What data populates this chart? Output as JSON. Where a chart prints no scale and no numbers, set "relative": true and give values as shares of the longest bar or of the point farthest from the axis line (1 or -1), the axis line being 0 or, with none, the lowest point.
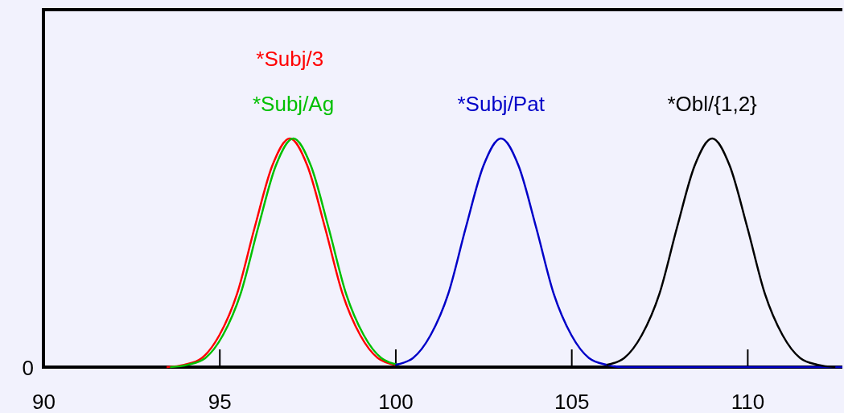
{
  "chart_data": {
    "type": "line",
    "relative": true,
    "xlim": [
      90,
      112.7
    ],
    "xticks": [
      90,
      95,
      100,
      105,
      110
    ],
    "marker": "none",
    "legend": false,
    "grid": false,
    "line_style": "solid",
    "annotations": [
      "0"
    ],
    "series": [
      {
        "name": "*Subj/3",
        "color": "#ff0000",
        "x": [
          93.5,
          94,
          94.5,
          95,
          95.5,
          96,
          96.5,
          97,
          97.5,
          98,
          98.5,
          99,
          99.5,
          100
        ],
        "values": [
          0,
          0.01,
          0.04,
          0.14,
          0.32,
          0.61,
          0.88,
          1,
          0.88,
          0.61,
          0.32,
          0.14,
          0.04,
          0.01
        ]
      },
      {
        "name": "*Subj/Ag",
        "color": "#00c000",
        "x": [
          93.6,
          94.1,
          94.6,
          95.1,
          95.6,
          96.1,
          96.6,
          97.1,
          97.6,
          98.1,
          98.6,
          99.1,
          99.6,
          100.1
        ],
        "values": [
          0,
          0.01,
          0.04,
          0.14,
          0.32,
          0.61,
          0.88,
          1,
          0.88,
          0.61,
          0.32,
          0.14,
          0.04,
          0.01
        ]
      },
      {
        "name": "*Subj/Pat",
        "color": "#0000c8",
        "x": [
          100,
          100.5,
          101,
          101.5,
          102,
          102.5,
          103,
          103.5,
          104,
          104.5,
          105,
          105.5,
          106,
          106.5,
          107,
          112.7
        ],
        "values": [
          0.01,
          0.04,
          0.14,
          0.32,
          0.61,
          0.88,
          1,
          0.88,
          0.61,
          0.32,
          0.14,
          0.04,
          0.01,
          0,
          0,
          0
        ]
      },
      {
        "name": "*Obl/{1,2}",
        "color": "#000000",
        "x": [
          106,
          106.5,
          107,
          107.5,
          108,
          108.5,
          109,
          109.5,
          110,
          110.5,
          111,
          111.5,
          112,
          112.5
        ],
        "values": [
          0.01,
          0.04,
          0.14,
          0.32,
          0.61,
          0.88,
          1,
          0.88,
          0.61,
          0.32,
          0.14,
          0.04,
          0.01,
          0
        ]
      }
    ]
  }
}
